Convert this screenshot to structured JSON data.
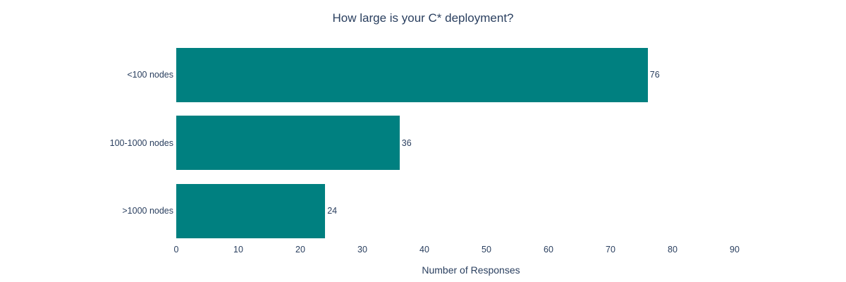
{
  "colors": {
    "bar": "#008080",
    "text": "#2a3f5f",
    "background": "#ffffff"
  },
  "chart_data": {
    "type": "bar",
    "orientation": "horizontal",
    "title": "How large is your C* deployment?",
    "xlabel": "Number of Responses",
    "ylabel": "",
    "categories": [
      "<100 nodes",
      "100-1000 nodes",
      ">1000 nodes"
    ],
    "values": [
      76,
      36,
      24
    ],
    "value_label_position": "outside-end",
    "xlim": [
      0,
      95
    ],
    "xticks": [
      0,
      10,
      20,
      30,
      40,
      50,
      60,
      70,
      80,
      90
    ],
    "grid": false,
    "legend": false,
    "bar_color": "#008080"
  }
}
